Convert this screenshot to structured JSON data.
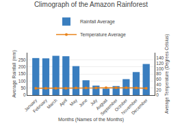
{
  "chart_data": {
    "type": "bar",
    "title": "Climograph of the Amazon Rainforest",
    "xlabel": "Months (Names of the Months)",
    "ylabel": "Average Rainfall (mm)",
    "y2label": "Average Temperature (Degrees Celsius)",
    "categories": [
      "January",
      "February",
      "March",
      "April",
      "May",
      "June",
      "July",
      "August",
      "September",
      "October",
      "November",
      "December"
    ],
    "series": [
      {
        "name": "Rainfall Average",
        "type": "bar",
        "color": "#3a7ebf",
        "values": [
          262,
          260,
          278,
          275,
          205,
          105,
          67,
          46,
          64,
          113,
          163,
          220
        ]
      },
      {
        "name": "Temperature Average",
        "type": "line",
        "color": "#e8821a",
        "marker": "circle",
        "line_style": "solid",
        "axis": "y2",
        "values": [
          26,
          26,
          26,
          26,
          27,
          27,
          27,
          28,
          28,
          28,
          27,
          26
        ]
      }
    ],
    "ylim": [
      0,
      300
    ],
    "yticks": [
      0,
      50,
      100,
      150,
      200,
      250
    ],
    "y2lim": [
      0,
      160
    ],
    "y2ticks": [
      0,
      20,
      40,
      60,
      80,
      100,
      120,
      140
    ],
    "grid": true,
    "legend": "upper center"
  }
}
